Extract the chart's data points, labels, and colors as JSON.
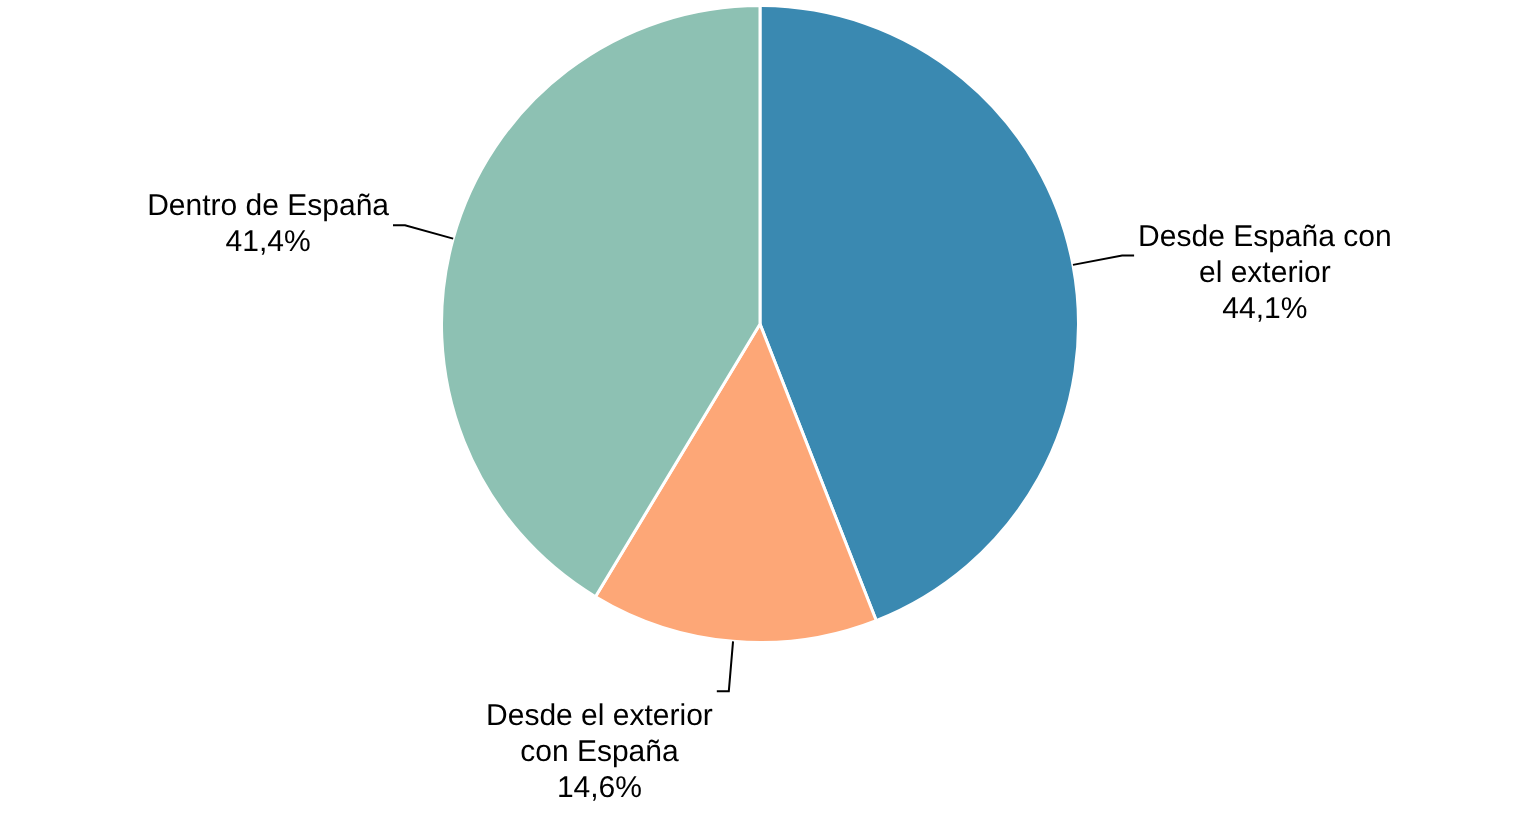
{
  "chart_data": {
    "type": "pie",
    "categories": [
      "Desde España con el exterior",
      "Desde el exterior con España",
      "Dentro de España"
    ],
    "values": [
      44.1,
      14.6,
      41.4
    ],
    "colors": [
      "#3a89b1",
      "#fda777",
      "#8dc1b3"
    ],
    "value_labels": [
      "44,1%",
      "14,6%",
      "41,4%"
    ],
    "legend": false
  }
}
